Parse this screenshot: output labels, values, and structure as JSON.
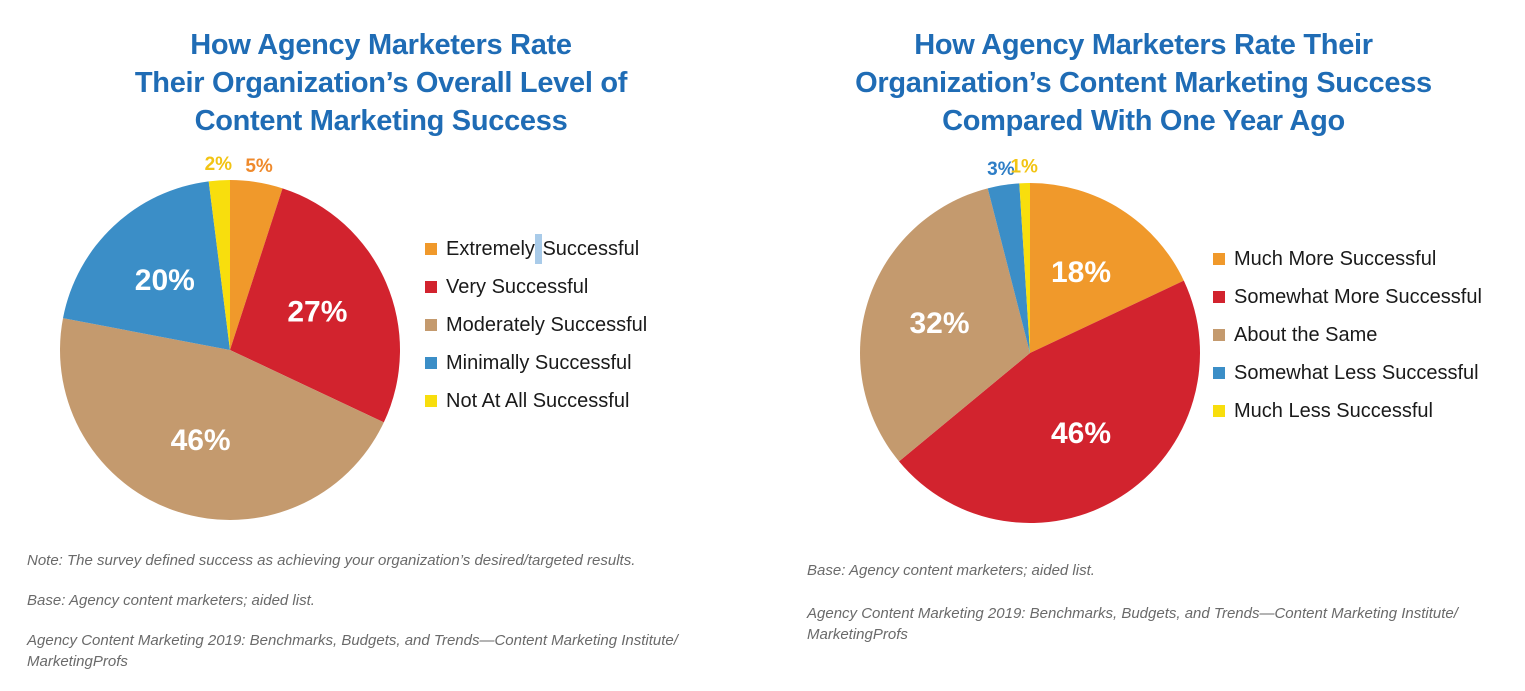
{
  "theme": {
    "background": "#ffffff",
    "title_color": "#1F6CB5",
    "legend_text_color": "#1A1A1A",
    "note_color": "#6A6A6A",
    "inside_label_color": "#FFFFFF",
    "selection_highlight_color": "#A9CBE9"
  },
  "selection_artifact": {
    "chart": 0,
    "legend_index": 0,
    "note": "light-blue highlighted space between Extremely and Successful"
  },
  "chart_data": [
    {
      "type": "pie",
      "title": "How Agency Marketers Rate Their Organization’s Overall Level of Content Marketing Success",
      "title_lines": [
        "How Agency Marketers Rate",
        "Their Organization’s Overall Level of",
        "Content Marketing Success"
      ],
      "categories": [
        "Extremely Successful",
        "Very Successful",
        "Moderately Successful",
        "Minimally Successful",
        "Not At All Successful"
      ],
      "values": [
        5,
        27,
        46,
        20,
        2
      ],
      "display_labels": [
        "5%",
        "27%",
        "46%",
        "20%",
        "2%"
      ],
      "colors": [
        "#F0992B",
        "#D2232E",
        "#C49A6E",
        "#3B8EC7",
        "#F8DE0D"
      ],
      "outside_label_colors": [
        "#EF8A2C",
        "#D2232E",
        "#C49A6E",
        "#3B8EC7",
        "#F2C414"
      ],
      "label_inside": [
        false,
        true,
        true,
        true,
        false
      ],
      "start_angle_deg": 0,
      "direction": "clockwise",
      "legend_position": "right",
      "grid": false,
      "notes": [
        "Note: The survey defined success as achieving your organization’s desired/targeted results.",
        "Base: Agency content marketers; aided list.",
        "Agency Content Marketing 2019: Benchmarks, Budgets, and Trends—Content Marketing Institute/\nMarketingProfs"
      ]
    },
    {
      "type": "pie",
      "title": "How Agency Marketers Rate Their Organization’s Content Marketing Success Compared With One Year Ago",
      "title_lines": [
        "How Agency Marketers Rate Their",
        "Organization’s Content Marketing Success",
        "Compared With One Year Ago"
      ],
      "categories": [
        "Much More Successful",
        "Somewhat More Successful",
        "About the Same",
        "Somewhat Less Successful",
        "Much Less Successful"
      ],
      "values": [
        18,
        46,
        32,
        3,
        1
      ],
      "display_labels": [
        "18%",
        "46%",
        "32%",
        "3%",
        "1%"
      ],
      "colors": [
        "#F0992B",
        "#D2232E",
        "#C49A6E",
        "#3B8EC7",
        "#F8DE0D"
      ],
      "outside_label_colors": [
        "#EF8A2C",
        "#D2232E",
        "#C49A6E",
        "#2E7EC6",
        "#F2C414"
      ],
      "label_inside": [
        true,
        true,
        true,
        false,
        false
      ],
      "start_angle_deg": 0,
      "direction": "clockwise",
      "legend_position": "right",
      "grid": false,
      "notes": [
        "Base: Agency content marketers; aided list.",
        "Agency Content Marketing 2019: Benchmarks, Budgets, and Trends—Content Marketing Institute/\nMarketingProfs"
      ]
    }
  ]
}
